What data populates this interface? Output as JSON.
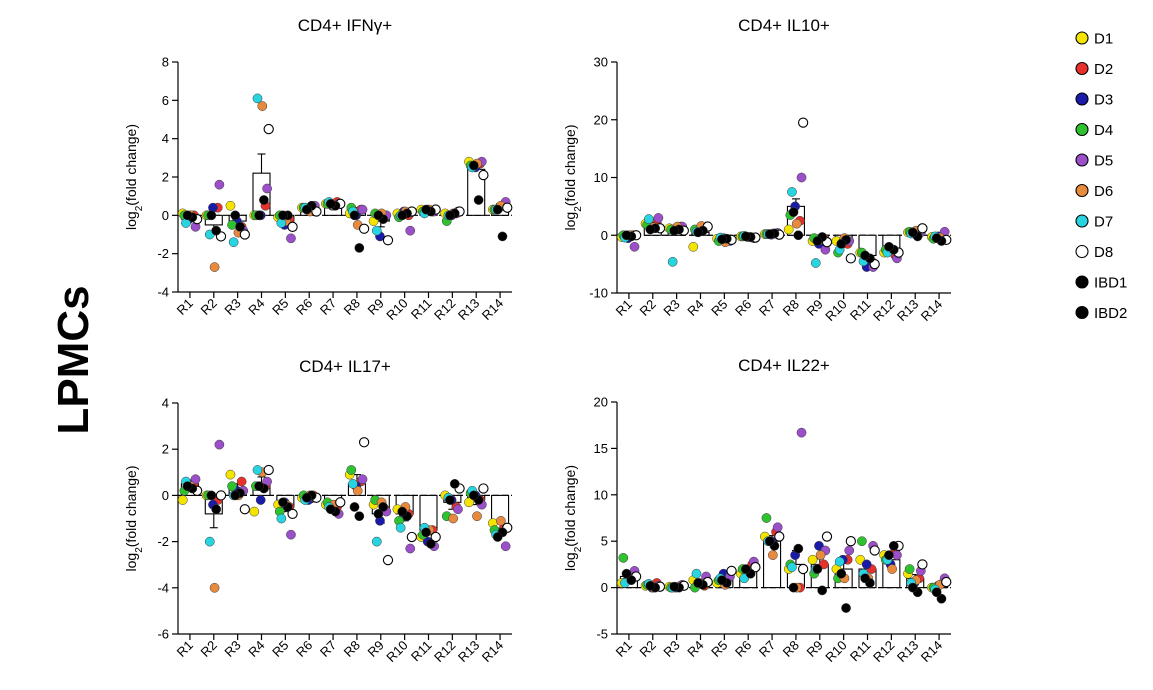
{
  "side_label": "LPMCs",
  "legend": {
    "items": [
      {
        "label": "D1",
        "color": "#f5e400",
        "hollow": false
      },
      {
        "label": "D2",
        "color": "#e8312a",
        "hollow": false
      },
      {
        "label": "D3",
        "color": "#1a1aa8",
        "hollow": false
      },
      {
        "label": "D4",
        "color": "#2ec22e",
        "hollow": false
      },
      {
        "label": "D5",
        "color": "#9b4fc9",
        "hollow": false
      },
      {
        "label": "D6",
        "color": "#e88a3e",
        "hollow": false
      },
      {
        "label": "D7",
        "color": "#27d4e0",
        "hollow": false
      },
      {
        "label": "D8",
        "color": "#ffffff",
        "hollow": true
      },
      {
        "label": "IBD1",
        "color": "#000000",
        "hollow": false
      },
      {
        "label": "IBD2",
        "color": "#000000",
        "hollow": false
      }
    ]
  },
  "chart_data": [
    {
      "type": "bar",
      "title": "CD4+ IFNγ+",
      "ylabel": "log2(fold change)",
      "ylim": [
        -4,
        8
      ],
      "yticks": [
        -4,
        -2,
        0,
        2,
        4,
        6,
        8
      ],
      "categories": [
        "R1",
        "R2",
        "R3",
        "R4",
        "R5",
        "R6",
        "R7",
        "R8",
        "R9",
        "R10",
        "R11",
        "R12",
        "R13",
        "R14"
      ],
      "bar_means": [
        -0.2,
        -0.5,
        -0.3,
        2.2,
        -0.3,
        0.4,
        0.6,
        0.1,
        -0.3,
        0.1,
        0.3,
        0.1,
        2.4,
        0.4
      ],
      "sem": [
        0.1,
        0.4,
        0.3,
        1.0,
        0.2,
        0.1,
        0.1,
        0.3,
        0.3,
        0.1,
        0.1,
        0.1,
        0.3,
        0.2
      ],
      "points": [
        [
          0.1,
          0,
          -0.2,
          0,
          -0.6,
          0,
          -0.4,
          -0.2,
          -0.1,
          0
        ],
        [
          0,
          0.4,
          0.4,
          0,
          1.6,
          -2.7,
          -1,
          -1.1,
          -0.8,
          0
        ],
        [
          0.5,
          -0.6,
          -0.3,
          -0.5,
          -0.8,
          -0.9,
          -1.4,
          -1,
          -0.6,
          0
        ],
        [
          0,
          0.5,
          0,
          0,
          1.4,
          5.7,
          6.1,
          4.5,
          0.8,
          0
        ],
        [
          -0.1,
          -0.2,
          -0.5,
          0,
          -1.2,
          -0.3,
          -0.4,
          -0.6,
          0,
          0
        ],
        [
          0.4,
          0.5,
          0.3,
          0.4,
          0.5,
          0.2,
          0.4,
          0.2,
          0.5,
          0.3
        ],
        [
          0.6,
          0.7,
          0.5,
          0.6,
          0.6,
          0.5,
          0.7,
          0.6,
          0.5,
          0.6
        ],
        [
          0.1,
          0.3,
          0,
          0.4,
          0.3,
          -0.5,
          0.2,
          -0.7,
          -1.7,
          0
        ],
        [
          -0.3,
          -0.1,
          -1.1,
          0.1,
          0,
          0.1,
          -0.8,
          -1.3,
          -0.2,
          0
        ],
        [
          0.1,
          0,
          0.2,
          -0.1,
          -0.8,
          0.2,
          0,
          0.2,
          0.1,
          0
        ],
        [
          0.3,
          0.2,
          0.3,
          0.2,
          0.2,
          0.3,
          0.1,
          0.3,
          0.2,
          0.3
        ],
        [
          0.1,
          0.1,
          0,
          -0.3,
          0.2,
          0.1,
          0,
          0.2,
          0.1,
          0
        ],
        [
          2.8,
          2.7,
          2.5,
          2.6,
          2.8,
          2.7,
          2.5,
          2.1,
          0.8,
          2.6
        ],
        [
          0.3,
          0.5,
          0.4,
          0.3,
          0.7,
          0.5,
          0.3,
          0.4,
          -1.1,
          0.3
        ]
      ]
    },
    {
      "type": "bar",
      "title": "CD4+ IL10+",
      "ylabel": "log2(fold change)",
      "ylim": [
        -10,
        30
      ],
      "yticks": [
        -10,
        0,
        10,
        20,
        30
      ],
      "categories": [
        "R1",
        "R2",
        "R3",
        "R4",
        "R5",
        "R6",
        "R7",
        "R8",
        "R9",
        "R10",
        "R11",
        "R12",
        "R13",
        "R14"
      ],
      "bar_means": [
        -0.5,
        1.5,
        1.0,
        0.5,
        -0.5,
        -0.3,
        0.2,
        5.0,
        -1.0,
        -1.5,
        -3.5,
        -2.5,
        0.5,
        -0.5
      ],
      "sem": [
        0.3,
        0.5,
        0.5,
        0.6,
        0.3,
        0.2,
        0.2,
        1.3,
        0.5,
        0.6,
        0.6,
        0.4,
        0.2,
        0.3
      ],
      "points": [
        [
          -0.3,
          0,
          -0.5,
          0,
          -2,
          0,
          -0.4,
          0,
          -0.2,
          0
        ],
        [
          2,
          2.2,
          1.5,
          1.8,
          3,
          1.4,
          2.8,
          1.2,
          1.2,
          1
        ],
        [
          1.2,
          1.5,
          1.2,
          1,
          1.5,
          1.5,
          -4.6,
          0.8,
          1,
          0.8
        ],
        [
          -2,
          1.2,
          0.8,
          1,
          1.4,
          1.6,
          0.6,
          1.5,
          0.8,
          0.5
        ],
        [
          -0.6,
          -0.8,
          -0.5,
          -1,
          -1,
          -1.2,
          -0.4,
          -0.8,
          -0.6,
          -0.7
        ],
        [
          -0.2,
          -0.4,
          -0.3,
          -0.2,
          -0.5,
          -0.3,
          -0.1,
          -0.4,
          -0.3,
          -0.2
        ],
        [
          0.2,
          0.3,
          0.1,
          0.2,
          0.4,
          0.3,
          0.2,
          0.1,
          0.3,
          0.2
        ],
        [
          1,
          2.5,
          5,
          3.5,
          10,
          2,
          7.5,
          19.5,
          0,
          4
        ],
        [
          -1,
          -0.5,
          -1.5,
          -0.5,
          -2.5,
          -0.8,
          -4.8,
          -1.2,
          -0.3,
          -1
        ],
        [
          -1,
          -1.5,
          -1.2,
          -3,
          -1,
          -0.5,
          -2.5,
          -4,
          -0.8,
          -1.5
        ],
        [
          -3,
          -4.5,
          -5.5,
          -3,
          -5.5,
          -4,
          -4.5,
          -5,
          -4,
          -3.5
        ],
        [
          -3,
          -3.5,
          -2.5,
          -2.5,
          -4,
          -2.5,
          -3,
          -3,
          -2.5,
          -2
        ],
        [
          0.5,
          0.8,
          0.3,
          0.6,
          0.5,
          0.8,
          0.3,
          1.2,
          -0.2,
          0.5
        ],
        [
          -0.3,
          -0.5,
          -0.2,
          -0.6,
          0.6,
          -0.4,
          -0.2,
          -0.8,
          -1,
          -0.5
        ]
      ]
    },
    {
      "type": "bar",
      "title": "CD4+ IL17+",
      "ylabel": "log2(fold change)",
      "ylim": [
        -6,
        4
      ],
      "yticks": [
        -6,
        -4,
        -2,
        0,
        2,
        4
      ],
      "categories": [
        "R1",
        "R2",
        "R3",
        "R4",
        "R5",
        "R6",
        "R7",
        "R8",
        "R9",
        "R10",
        "R11",
        "R12",
        "R13",
        "R14"
      ],
      "bar_means": [
        0.5,
        -0.8,
        0.3,
        0.5,
        -0.5,
        -0.2,
        -0.5,
        0.5,
        -0.8,
        -0.8,
        -1.5,
        -0.3,
        -0.2,
        -1.5
      ],
      "sem": [
        0.1,
        0.6,
        0.2,
        0.3,
        0.2,
        0.1,
        0.1,
        0.4,
        0.4,
        0.3,
        0.2,
        0.3,
        0.2,
        0.2
      ],
      "points": [
        [
          -0.2,
          0.5,
          0.5,
          0.2,
          0.7,
          0.4,
          0.6,
          0.2,
          0.3,
          0.4
        ],
        [
          0,
          -0.2,
          -0.4,
          0,
          2.2,
          -4,
          -2,
          0,
          -0.6,
          0
        ],
        [
          0.9,
          0.6,
          0.2,
          0.4,
          0.2,
          0,
          0,
          -0.6,
          0.1,
          0
        ],
        [
          -0.7,
          0.4,
          -0.2,
          0.4,
          0.6,
          1,
          1.1,
          1.1,
          0.3,
          0.4
        ],
        [
          -0.4,
          -0.5,
          -0.3,
          -0.7,
          -1.7,
          -0.4,
          -1,
          -0.8,
          -0.5,
          -0.3
        ],
        [
          -0.1,
          0,
          -0.2,
          0,
          -0.1,
          0,
          -0.2,
          -0.1,
          0,
          -0.1
        ],
        [
          -0.4,
          -0.5,
          -0.6,
          -0.3,
          -0.8,
          -0.4,
          -0.5,
          -0.3,
          -0.7,
          -0.6
        ],
        [
          0.9,
          0.6,
          0.4,
          1.1,
          0.7,
          0.2,
          0.5,
          2.3,
          -0.9,
          -0.5
        ],
        [
          -0.4,
          -0.6,
          -1.1,
          -0.2,
          -0.7,
          -0.3,
          -2,
          -2.8,
          -0.5,
          -0.8
        ],
        [
          -0.6,
          -0.8,
          -0.9,
          -1.1,
          -2.3,
          -0.5,
          -1.4,
          -1.8,
          -0.9,
          -0.7
        ],
        [
          -1.8,
          -1.5,
          -2,
          -1.7,
          -2.2,
          -1.5,
          -1.4,
          -1.8,
          -2.1,
          -1.6
        ],
        [
          0,
          -0.5,
          -0.2,
          -0.9,
          -0.6,
          -1,
          -0.1,
          0.3,
          0.5,
          -0.2
        ],
        [
          -0.3,
          -0.2,
          0,
          0.1,
          -0.4,
          -0.9,
          0.2,
          0.3,
          -0.2,
          0
        ],
        [
          -1.2,
          -1.4,
          -1.6,
          -1.5,
          -2.2,
          -1.1,
          -1.7,
          -1.4,
          -1.6,
          -1.8
        ]
      ]
    },
    {
      "type": "bar",
      "title": "CD4+ IL22+",
      "ylabel": "log2(fold change)",
      "ylim": [
        -5,
        20
      ],
      "yticks": [
        -5,
        0,
        5,
        10,
        15,
        20
      ],
      "categories": [
        "R1",
        "R2",
        "R3",
        "R4",
        "R5",
        "R6",
        "R7",
        "R8",
        "R9",
        "R10",
        "R11",
        "R12",
        "R13",
        "R14"
      ],
      "bar_means": [
        1.2,
        0.2,
        0.1,
        0.5,
        1.0,
        1.8,
        5.0,
        2.5,
        2.5,
        2.0,
        2.0,
        3.0,
        1.0,
        0.2
      ],
      "sem": [
        0.4,
        0.1,
        0.1,
        0.3,
        0.3,
        0.4,
        0.6,
        1.5,
        0.6,
        0.6,
        0.5,
        0.4,
        0.4,
        0.3
      ],
      "points": [
        [
          0.5,
          1.5,
          1,
          3.2,
          1.8,
          1,
          0.5,
          1.2,
          0.8,
          1.5
        ],
        [
          0.2,
          0.5,
          0,
          0.3,
          0.2,
          0,
          0.4,
          0.1,
          0,
          0.2
        ],
        [
          0.1,
          0.2,
          0,
          0,
          0.3,
          0.1,
          0,
          0.2,
          0,
          0.1
        ],
        [
          0.8,
          0.2,
          0.5,
          0,
          1.2,
          0.4,
          1.5,
          0.6,
          0.3,
          0.5
        ],
        [
          0.5,
          1,
          1.5,
          0.8,
          1.2,
          0.3,
          1,
          1.8,
          0.5,
          0.8
        ],
        [
          1.5,
          2.5,
          1.5,
          2,
          2.8,
          1.8,
          1,
          2.2,
          1.5,
          2
        ],
        [
          5.5,
          6,
          5,
          7.5,
          6.5,
          3.5,
          5,
          5.5,
          4.5,
          5
        ],
        [
          2,
          0,
          3.5,
          2.5,
          16.7,
          0,
          2.2,
          2,
          4.2,
          0
        ],
        [
          3,
          2.5,
          4.5,
          1.5,
          4,
          3.5,
          2,
          5.5,
          -0.3,
          2
        ],
        [
          2,
          3,
          3,
          1,
          4,
          1,
          2.8,
          5,
          -2.2,
          1.5
        ],
        [
          3,
          2,
          2.5,
          5,
          4.5,
          1,
          1.5,
          4,
          0.5,
          1
        ],
        [
          3.5,
          4,
          2.5,
          3,
          3.5,
          2,
          3,
          4.5,
          4.5,
          3.5
        ],
        [
          1.5,
          1,
          0.5,
          2,
          1.8,
          0.8,
          0.5,
          2.5,
          -0.5,
          0
        ],
        [
          0,
          0.5,
          0.2,
          0,
          1,
          0.3,
          -0.2,
          0.6,
          -1.2,
          -0.5
        ]
      ]
    }
  ]
}
